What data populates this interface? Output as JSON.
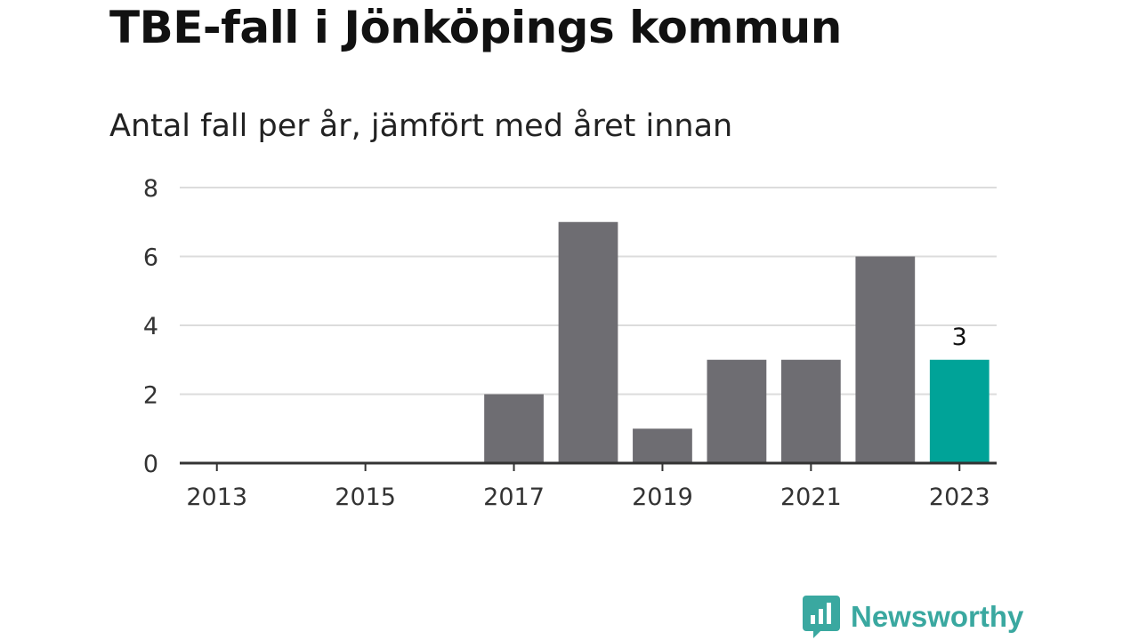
{
  "chart_data": {
    "type": "bar",
    "title": "TBE-fall i Jönköpings kommun",
    "subtitle": "Antal fall per år, jämfört med året innan",
    "categories": [
      "2013",
      "2014",
      "2015",
      "2016",
      "2017",
      "2018",
      "2019",
      "2020",
      "2021",
      "2022",
      "2023"
    ],
    "values": [
      0,
      0,
      0,
      0,
      2,
      7,
      1,
      3,
      3,
      6,
      3
    ],
    "highlight_category": "2023",
    "highlight_label": "3",
    "x_tick_labels": [
      "2013",
      "2015",
      "2017",
      "2019",
      "2021",
      "2023"
    ],
    "y_ticks": [
      0,
      2,
      4,
      6,
      8
    ],
    "ylim": [
      0,
      8
    ],
    "xlabel": "",
    "ylabel": "",
    "grid": true,
    "colors": {
      "bar": "#6e6d72",
      "highlight": "#00a398",
      "grid": "#dcdcdc",
      "axis": "#333333"
    }
  },
  "brand": {
    "name": "Newsworthy",
    "color": "#3aa8a0"
  }
}
